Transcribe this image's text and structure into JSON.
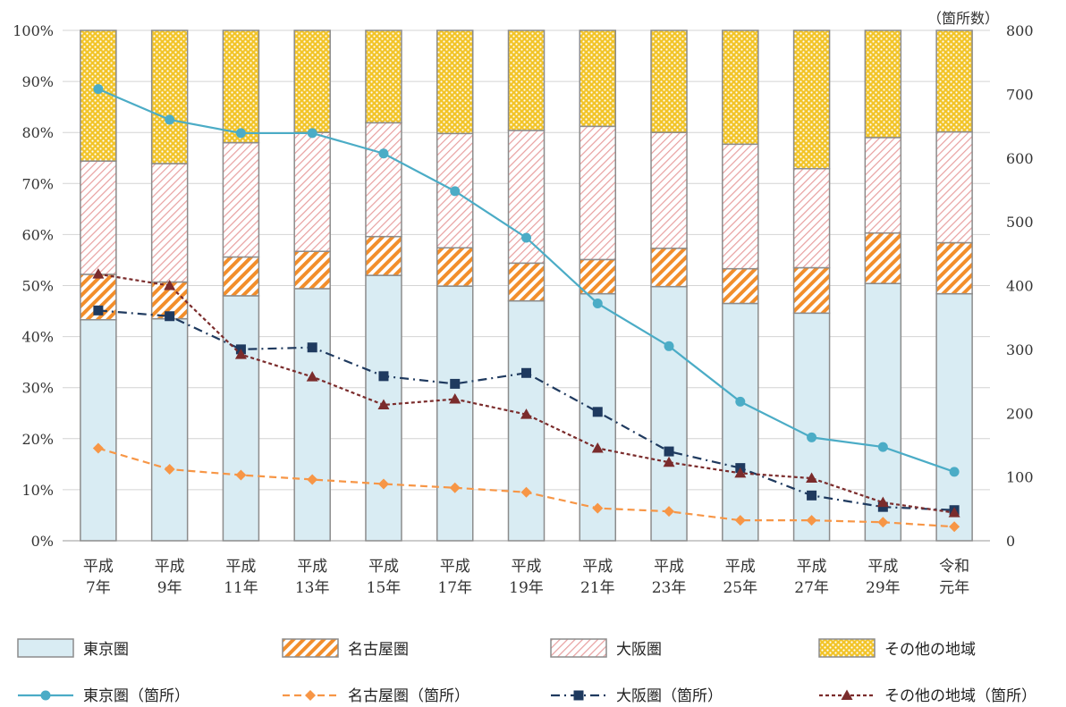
{
  "chart_data": {
    "type": "bar",
    "stacked": true,
    "combo": "stacked percentage bars with count lines on secondary axis",
    "categories": [
      [
        "平成",
        "7年"
      ],
      [
        "平成",
        "9年"
      ],
      [
        "平成",
        "11年"
      ],
      [
        "平成",
        "13年"
      ],
      [
        "平成",
        "15年"
      ],
      [
        "平成",
        "17年"
      ],
      [
        "平成",
        "19年"
      ],
      [
        "平成",
        "21年"
      ],
      [
        "平成",
        "23年"
      ],
      [
        "平成",
        "25年"
      ],
      [
        "平成",
        "27年"
      ],
      [
        "平成",
        "29年"
      ],
      [
        "令和",
        "元年"
      ]
    ],
    "y_left": {
      "min": 0,
      "max": 100,
      "step": 10,
      "unit": "%"
    },
    "y_right": {
      "min": 0,
      "max": 800,
      "step": 100,
      "label": "（箇所数）"
    },
    "grid": true,
    "legend_position": "bottom",
    "bar_series": [
      {
        "name": "東京圏",
        "color": "#d9ecf3",
        "pattern": "solid",
        "values": [
          43.3,
          43.5,
          48.0,
          49.4,
          52.0,
          49.9,
          47.0,
          48.4,
          49.8,
          46.5,
          44.6,
          50.4,
          48.4
        ]
      },
      {
        "name": "名古屋圏",
        "color": "#f28e2b",
        "pattern": "diagonal",
        "values": [
          8.9,
          7.2,
          7.6,
          7.3,
          7.6,
          7.5,
          7.4,
          6.7,
          7.5,
          6.8,
          8.9,
          9.9,
          10.0
        ]
      },
      {
        "name": "大阪圏",
        "color": "#e8a0a0",
        "pattern": "light-diagonal",
        "values": [
          22.2,
          23.2,
          22.4,
          23.3,
          22.3,
          22.4,
          26.0,
          26.1,
          22.7,
          24.4,
          19.4,
          18.7,
          21.7
        ]
      },
      {
        "name": "その他の地域",
        "color": "#f2c428",
        "pattern": "dots",
        "values": [
          25.6,
          26.1,
          22.0,
          20.0,
          18.1,
          20.2,
          19.6,
          18.8,
          20.0,
          22.3,
          27.1,
          21.0,
          19.9
        ]
      }
    ],
    "line_series": [
      {
        "name": "東京圏（箇所）",
        "color": "#4bacc6",
        "dash": "solid",
        "marker": "circle",
        "values": [
          708,
          660,
          639,
          639,
          607,
          548,
          475,
          372,
          305,
          218,
          162,
          147,
          108
        ]
      },
      {
        "name": "名古屋圏（箇所）",
        "color": "#f79646",
        "dash": "dashed",
        "marker": "diamond",
        "values": [
          145,
          112,
          103,
          96,
          89,
          83,
          76,
          51,
          46,
          32,
          32,
          29,
          22
        ]
      },
      {
        "name": "大阪圏（箇所）",
        "color": "#1f3a5f",
        "dash": "dashdot",
        "marker": "square",
        "values": [
          361,
          352,
          300,
          303,
          258,
          246,
          263,
          202,
          140,
          114,
          71,
          53,
          48
        ]
      },
      {
        "name": "その他の地域（箇所）",
        "color": "#7b2c2c",
        "dash": "dotted",
        "marker": "triangle",
        "values": [
          418,
          400,
          292,
          257,
          213,
          222,
          198,
          145,
          123,
          106,
          98,
          60,
          44
        ]
      }
    ]
  }
}
